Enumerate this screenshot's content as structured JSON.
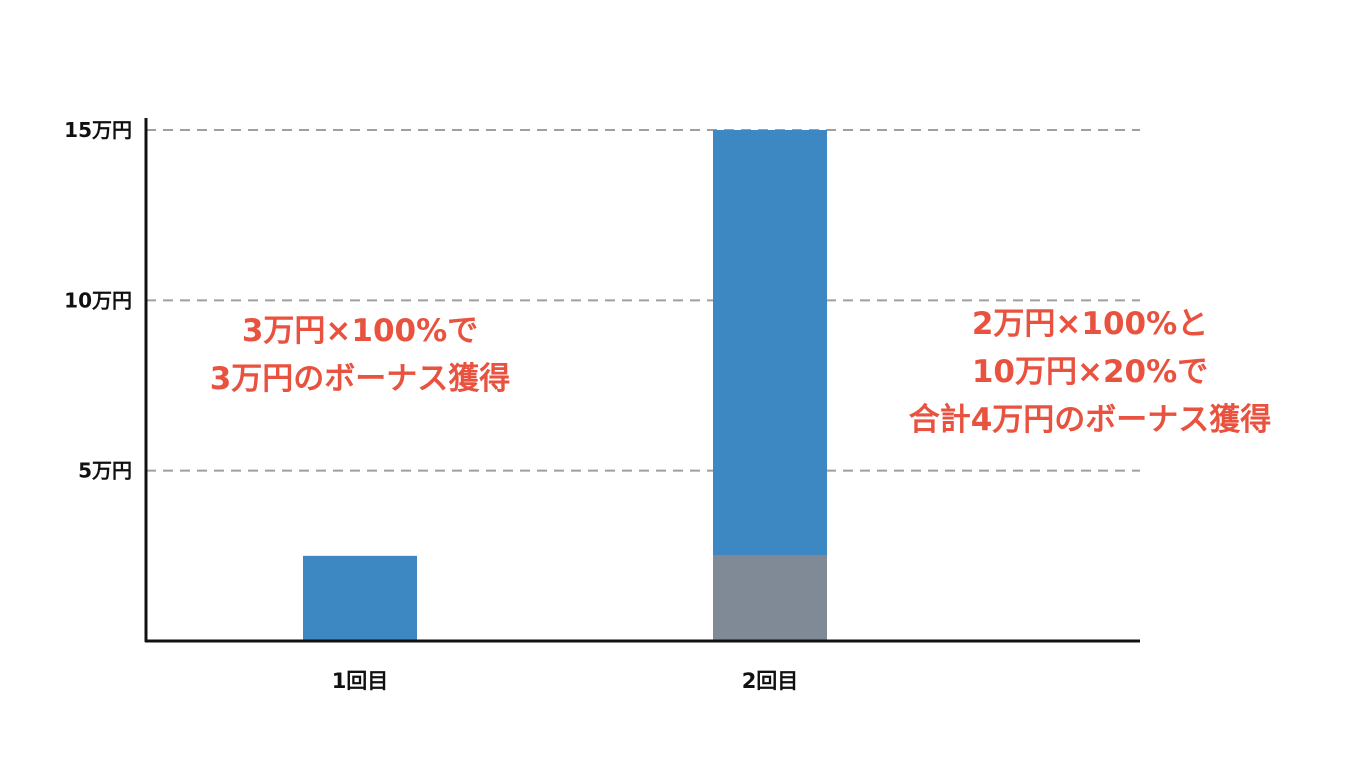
{
  "chart_data": {
    "type": "bar",
    "stacked": true,
    "categories": [
      "1回目",
      "2回目"
    ],
    "series": [
      {
        "values": [
          0,
          2.5
        ],
        "color": "#808A96"
      },
      {
        "values": [
          2.5,
          12.5
        ],
        "color": "#3D88C3"
      }
    ],
    "ylim": [
      0,
      15
    ],
    "yticks": [
      {
        "value": 5,
        "label": "5万円"
      },
      {
        "value": 10,
        "label": "10万円"
      },
      {
        "value": 15,
        "label": "15万円"
      }
    ],
    "grid": true,
    "grid_color": "#A59C9C",
    "axis_color": "#111111",
    "annotation_color": "#E8523F",
    "annotations": [
      {
        "lines": [
          "3万円×100%で",
          "3万円のボーナス獲得"
        ]
      },
      {
        "lines": [
          "2万円×100%と",
          "10万円×20%で",
          "合計4万円のボーナス獲得"
        ]
      }
    ]
  }
}
